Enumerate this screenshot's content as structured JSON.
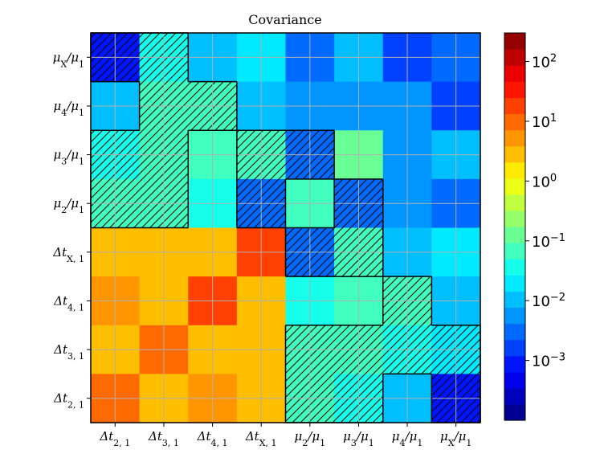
{
  "chart_data": {
    "type": "heatmap",
    "title": "Covariance",
    "xlabel": "",
    "ylabel": "",
    "scale": "log",
    "vmin": 0.0001,
    "vmax": 300,
    "colormap": "jet",
    "colorbar_ticks": [
      {
        "base": "10",
        "exp": "2",
        "value": 100
      },
      {
        "base": "10",
        "exp": "1",
        "value": 10
      },
      {
        "base": "10",
        "exp": "0",
        "value": 1
      },
      {
        "base": "10",
        "exp": "−1",
        "value": 0.1
      },
      {
        "base": "10",
        "exp": "−2",
        "value": 0.01
      },
      {
        "base": "10",
        "exp": "−3",
        "value": 0.001
      }
    ],
    "x_tick_labels": [
      {
        "main": "Δt",
        "sub": "2, 1",
        "rest": ""
      },
      {
        "main": "Δt",
        "sub": "3, 1",
        "rest": ""
      },
      {
        "main": "Δt",
        "sub": "4, 1",
        "rest": ""
      },
      {
        "main": "Δt",
        "sub": "X, 1",
        "rest": ""
      },
      {
        "main": "μ",
        "sub": "2",
        "rest": "/μ",
        "sub2": "1"
      },
      {
        "main": "μ",
        "sub": "3",
        "rest": "/μ",
        "sub2": "1"
      },
      {
        "main": "μ",
        "sub": "4",
        "rest": "/μ",
        "sub2": "1"
      },
      {
        "main": "μ",
        "sub": "X",
        "rest": "/μ",
        "sub2": "1"
      }
    ],
    "y_tick_labels_top_to_bottom": [
      {
        "main": "μ",
        "sub": "X",
        "rest": "/μ",
        "sub2": "1"
      },
      {
        "main": "μ",
        "sub": "4",
        "rest": "/μ",
        "sub2": "1"
      },
      {
        "main": "μ",
        "sub": "3",
        "rest": "/μ",
        "sub2": "1"
      },
      {
        "main": "μ",
        "sub": "2",
        "rest": "/μ",
        "sub2": "1"
      },
      {
        "main": "Δt",
        "sub": "X, 1",
        "rest": ""
      },
      {
        "main": "Δt",
        "sub": "4, 1",
        "rest": ""
      },
      {
        "main": "Δt",
        "sub": "3, 1",
        "rest": ""
      },
      {
        "main": "Δt",
        "sub": "2, 1",
        "rest": ""
      }
    ],
    "values_top_to_bottom": [
      [
        0.0008,
        0.04,
        0.012,
        0.02,
        0.003,
        0.012,
        0.002,
        0.004
      ],
      [
        0.012,
        0.06,
        0.06,
        0.012,
        0.006,
        0.006,
        0.006,
        0.002
      ],
      [
        0.04,
        0.06,
        0.08,
        0.06,
        0.003,
        0.12,
        0.006,
        0.014
      ],
      [
        0.06,
        0.06,
        0.03,
        0.004,
        0.05,
        0.003,
        0.006,
        0.004
      ],
      [
        3,
        3,
        3,
        15,
        0.004,
        0.08,
        0.01,
        0.02
      ],
      [
        5,
        3,
        15,
        3,
        0.03,
        0.06,
        0.08,
        0.01
      ],
      [
        3,
        10,
        3,
        3,
        0.08,
        0.08,
        0.04,
        0.02
      ],
      [
        10,
        3,
        5,
        3,
        0.07,
        0.03,
        0.012,
        0.001
      ]
    ],
    "hatched_top_to_bottom": [
      [
        1,
        1,
        0,
        0,
        0,
        0,
        0,
        0
      ],
      [
        0,
        1,
        1,
        0,
        0,
        0,
        0,
        0
      ],
      [
        1,
        1,
        0,
        1,
        1,
        0,
        0,
        0
      ],
      [
        1,
        1,
        0,
        1,
        0,
        1,
        0,
        0
      ],
      [
        0,
        0,
        0,
        0,
        1,
        1,
        0,
        0
      ],
      [
        0,
        0,
        0,
        0,
        0,
        0,
        1,
        0
      ],
      [
        0,
        0,
        0,
        0,
        1,
        1,
        1,
        1
      ],
      [
        0,
        0,
        0,
        0,
        1,
        1,
        0,
        1
      ]
    ],
    "grid": true
  }
}
